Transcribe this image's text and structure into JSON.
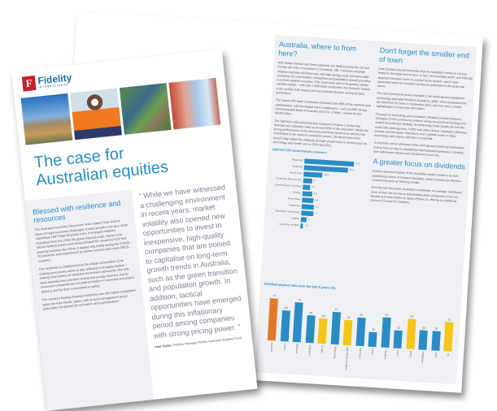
{
  "spread": {
    "col1": {
      "heading": "Australia, where to from here?",
      "paragraphs": [
        "With further interest rate hikes expected, the likelihood that the US and Europe will enter a recession is increasing. Still, it remains uncertain whether Australia will follow suit, with high energy costs and favourable conditions for commodities, immigration and population growth providing a cushion against recession. This could bode well for Australia's vibrant equities market – with over 2,000 listed companies, the domestic market is the world's ninth largest and has consistently been among its best performers.",
        "The largest 200 listed companies represent over 80% of the market's total capitalisation, with the largest index constituents – such as BHP Group, Commonwealth Bank of Australia and CSL Limited – valued at over A$100 billion.",
        "The S&P/ASX 200 sector/industry exposure in Figure 1 shows that financial and materials make up around 50% of the total index. Whilst the strong performance of the resources and financial services sectors has contributed to the market's consistent returns, the benchmark index doesn't fully reflect the relatively stronger growth seen in sectors such as technology and health care in 2020 and 2021."
      ]
    },
    "col2": {
      "heading": "Don't forget the smaller end of town",
      "paragraphs": [
        "And investors should remember that the Australian market is not just limited to the large end of town. In fact, the Australian small- and mid-cap segment has been home to several future leaders, which have generated value for investors as they've graduated to the large-cap arena.",
        "One such prominent recent example is the sleep apnoea equipment technology specialist ResMed, founded in 1989, which graduated into the S&P/ASX 50 Index in September 2021, and now has a market capitalisation of more than $47 billion.",
        "Focused on technology and innovation, ResMed commercialised a prototype CPAP (continuous positive airway pressure) technology and scaled its production globally. Its technology helps people all over the world with sleep apnoea, COPD and other chronic respiratory diseases breathe and live better. Resmed is now a global leader in sleep technology with origins right here in Australia.",
        "In Australia, we've witnessed other mid-cap and small-cap businesses evolve from an idea to established international businesses, including now well-known names such as Domino's and CSL."
      ],
      "heading2": "A greater focus on dividends",
      "paragraphs2": [
        "Another attractive feature of the Australian equity market is its well-established culture of dividend discipline, which includes tax effective components such as franking credits.",
        "Over the last five years, Australian companies, on average, distributed more of their net income to shareholders than companies in the US, Europe and Asia-Pacific ex Japan (Figure 2), offering an additional source of income for investors."
      ]
    },
    "sector_chart": {
      "title": "S&P/ASX 200 sector/industry exposure",
      "categories": [
        "Financials",
        "Materials",
        "Health care",
        "Consumer discretionary",
        "Communication services",
        "Energy",
        "Real estate",
        "Industrials",
        "Information technology",
        "Utilities",
        "Consumer staples"
      ],
      "values": [
        27.6,
        24.4,
        10.5,
        5.0,
        4.1,
        5.5,
        6.2,
        6.7,
        7.0,
        3.0,
        1.5
      ],
      "color": "#2a8cc4"
    },
    "payout_chart": {
      "title": "Dividend payout ratio over the last 5 years (%)",
      "categories": [
        "Australia",
        "Czech",
        "Malaysia",
        "Singapore",
        "Europe",
        "Hong Kong",
        "Asia Pacific ex Japan",
        "Indonesia",
        "Korea",
        "Thailand",
        "China",
        "World",
        "Philippines",
        "India",
        "US"
      ],
      "values": [
        74,
        54,
        70,
        48,
        44,
        57,
        45,
        50,
        26,
        53,
        32,
        53,
        34,
        34,
        51
      ],
      "highlight": [
        "Europe",
        "Asia Pacific ex Japan",
        "World",
        "US"
      ],
      "colors": {
        "default": "#2a8cc4",
        "highlight": "#f5c518",
        "australia": "#e07a2a"
      }
    }
  },
  "cover": {
    "brand": "Fidelity",
    "brand_sub": "INTERNATIONAL",
    "logo_letter": "F",
    "title_line1": "The case for",
    "title_line2": "Australian equities",
    "section_heading": "Blessed with resilience and resources",
    "paragraphs": [
      "The Australian economy has proven more resilient than most in times of major economic challenges. It held up well in the face of the calamitous 1997 Asian financial crisis. It emerged relatively unscathed from the 2008–09 global financial crisis, thanks to its robust banking system and strong demand for resources from fast-growing countries like China. It dipped only briefly during the COVID-19 pandemic and experienced an earlier recovery than most OECD countries.",
      "This resilience is underpinned by the unique composition of its underlying economy which is also reflected in its equity market – making local shares an attractive investment opportunity. Not only does Australia have plentiful mineral and energy reserves, but its resources companies are considered leaders in technical and project delivery, and for their commitment to safety.",
      "The country's leading financial institutions are also highly competitive within the Asia-Pacific region, with its fund management sector particularly recognised for innovation and sophistication."
    ],
    "quote": "“ While we have witnessed a challenging environment in recent years, market volatility also opened new opportunities to invest in inexpensive, high-quality companies that are poised to capitalise on long-term growth trends in Australia, such as the green transition and population growth. In addition, tactical opportunities have emerged during this inflationary period among companies with strong pricing power. ”",
    "quote_author": "Paul Taylor,",
    "quote_role": "Portfolio Manager Fidelity Australian Equities Fund"
  }
}
